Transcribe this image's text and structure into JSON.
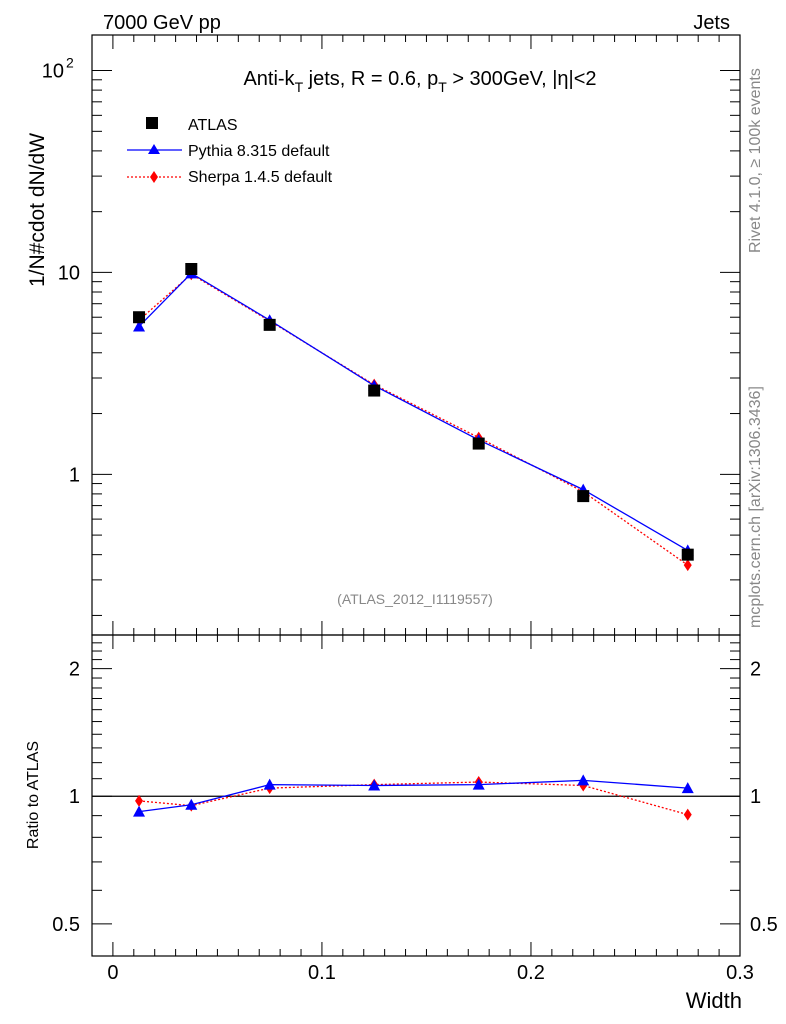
{
  "header": {
    "energy_label": "7000 GeV pp",
    "category_label": "Jets"
  },
  "side_text": {
    "rivet": "Rivet 4.1.0, ≥ 100k events",
    "mcplots": "mcplots.cern.ch [arXiv:1306.3436]"
  },
  "chart_data": [
    {
      "type": "scatter",
      "panel": "main",
      "title": {
        "prefix": "Anti-k",
        "k_sub": "T",
        "middle": " jets, R = 0.6, p",
        "p_sub": "T",
        "suffix": " > 300GeV, |η|<2"
      },
      "analysis_id": "(ATLAS_2012_I1119557)",
      "xlabel": "Width",
      "ylabel": "1/N#cdot dN/dW",
      "yscale": "log",
      "xlim": [
        -0.01,
        0.3
      ],
      "ylim": [
        0.16,
        150
      ],
      "y_ticks": [
        {
          "value": 100,
          "base": "10",
          "exp": "2"
        },
        {
          "value": 10,
          "base": "10",
          "exp": ""
        },
        {
          "value": 1,
          "base": "1",
          "exp": ""
        }
      ],
      "x": [
        0.0125,
        0.0375,
        0.075,
        0.125,
        0.175,
        0.225,
        0.275
      ],
      "series": [
        {
          "name": "ATLAS",
          "style": "data",
          "color": "#000000",
          "values": [
            6.0,
            10.4,
            5.5,
            2.6,
            1.42,
            0.78,
            0.4
          ]
        },
        {
          "name": "Pythia 8.315 default",
          "style": "solid",
          "color": "#0000ff",
          "values": [
            5.4,
            9.9,
            5.8,
            2.75,
            1.48,
            0.84,
            0.42
          ]
        },
        {
          "name": "Sherpa 1.4.5 default",
          "style": "dotted",
          "color": "#ff0000",
          "values": [
            5.8,
            9.8,
            5.75,
            2.78,
            1.52,
            0.82,
            0.355
          ]
        }
      ]
    },
    {
      "type": "scatter",
      "panel": "ratio",
      "ylabel": "Ratio to ATLAS",
      "yscale": "log",
      "xlim": [
        -0.01,
        0.3
      ],
      "ylim": [
        0.42,
        2.4
      ],
      "x_ticks": [
        {
          "value": 0,
          "label": "0"
        },
        {
          "value": 0.1,
          "label": "0.1"
        },
        {
          "value": 0.2,
          "label": "0.2"
        },
        {
          "value": 0.3,
          "label": "0.3"
        }
      ],
      "y_ticks": [
        {
          "value": 2,
          "label": "2"
        },
        {
          "value": 1,
          "label": "1"
        },
        {
          "value": 0.5,
          "label": "0.5"
        }
      ],
      "x": [
        0.0125,
        0.0375,
        0.075,
        0.125,
        0.175,
        0.225,
        0.275
      ],
      "series": [
        {
          "name": "Pythia 8.315 default",
          "style": "solid",
          "color": "#0000ff",
          "values": [
            0.92,
            0.955,
            1.065,
            1.06,
            1.065,
            1.09,
            1.045
          ]
        },
        {
          "name": "Sherpa 1.4.5 default",
          "style": "dotted",
          "color": "#ff0000",
          "values": [
            0.975,
            0.95,
            1.045,
            1.065,
            1.08,
            1.06,
            0.905
          ]
        }
      ]
    }
  ]
}
